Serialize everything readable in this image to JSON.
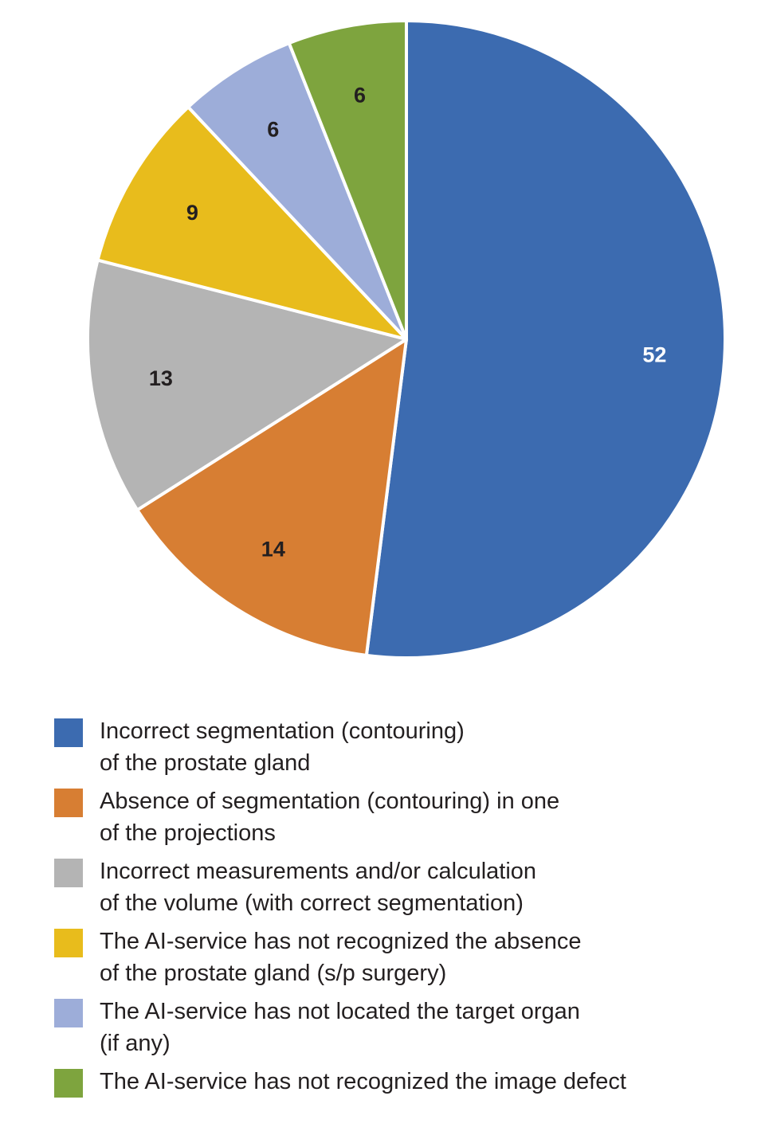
{
  "chart_data": {
    "type": "pie",
    "categories": [
      "Incorrect segmentation (contouring)\nof the prostate gland",
      "Absence of segmentation (contouring) in one\nof the projections",
      "Incorrect measurements and/or calculation\nof the volume (with correct segmentation)",
      "The AI-service has not recognized the absence\nof the prostate gland (s/p surgery)",
      "The AI-service has not located the target organ\n(if any)",
      "The AI-service has not recognized the image defect"
    ],
    "values": [
      52,
      14,
      13,
      9,
      6,
      6
    ],
    "labels": [
      "52",
      "14",
      "13",
      "9",
      "6",
      "6"
    ],
    "colors": [
      "#3c6bb0",
      "#d77e33",
      "#b4b4b4",
      "#e8bc1c",
      "#9dadd9",
      "#7ea43e"
    ],
    "label_colors": [
      "#ffffff",
      "#231f20",
      "#231f20",
      "#231f20",
      "#231f20",
      "#231f20"
    ],
    "start": "12 o'clock",
    "direction": "clockwise",
    "title": "",
    "legend_position": "bottom"
  }
}
